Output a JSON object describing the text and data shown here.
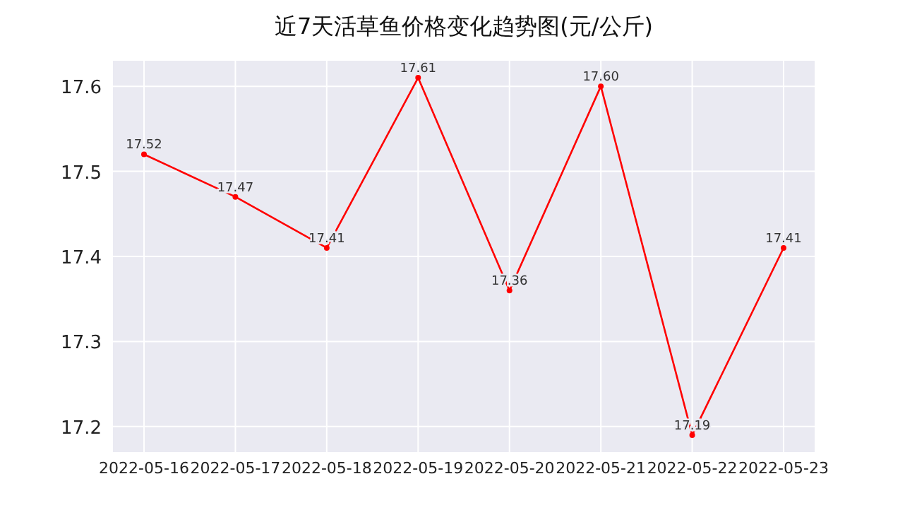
{
  "chart_data": {
    "type": "line",
    "title": "近7天活草鱼价格变化趋势图(元/公斤)",
    "categories": [
      "2022-05-16",
      "2022-05-17",
      "2022-05-18",
      "2022-05-19",
      "2022-05-20",
      "2022-05-21",
      "2022-05-22",
      "2022-05-23"
    ],
    "series": [
      {
        "color": "#ff0000",
        "values": [
          17.52,
          17.47,
          17.41,
          17.61,
          17.36,
          17.6,
          17.19,
          17.41
        ],
        "value_labels": [
          "17.52",
          "17.47",
          "17.41",
          "17.61",
          "17.36",
          "17.60",
          "17.19",
          "17.41"
        ]
      }
    ],
    "ylim": [
      17.17,
      17.63
    ],
    "yticks": [
      17.2,
      17.3,
      17.4,
      17.5,
      17.6
    ],
    "grid": true,
    "marker": "circle",
    "line_style": "solid"
  }
}
